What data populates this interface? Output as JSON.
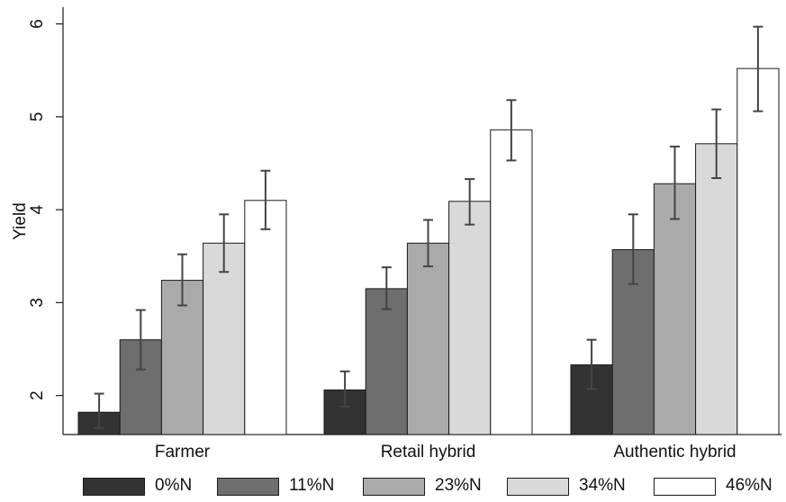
{
  "chart_data": {
    "type": "bar",
    "title": "",
    "xlabel": "",
    "ylabel": "Yield",
    "ylim": [
      1.58,
      6.18
    ],
    "yticks": [
      2,
      3,
      4,
      5,
      6
    ],
    "grid": false,
    "legend_position": "bottom",
    "categories": [
      "Farmer",
      "Retail hybrid",
      "Authentic hybrid"
    ],
    "series": [
      {
        "name": "0%N",
        "color": "#333333",
        "values": [
          1.82,
          2.06,
          2.33
        ],
        "err_low": [
          1.65,
          1.88,
          2.07
        ],
        "err_high": [
          2.02,
          2.26,
          2.6
        ]
      },
      {
        "name": "11%N",
        "color": "#6e6e6e",
        "values": [
          2.6,
          3.15,
          3.57
        ],
        "err_low": [
          2.28,
          2.93,
          3.2
        ],
        "err_high": [
          2.92,
          3.38,
          3.95
        ]
      },
      {
        "name": "23%N",
        "color": "#aaaaaa",
        "values": [
          3.24,
          3.64,
          4.28
        ],
        "err_low": [
          2.97,
          3.39,
          3.9
        ],
        "err_high": [
          3.52,
          3.89,
          4.68
        ]
      },
      {
        "name": "34%N",
        "color": "#d9d9d9",
        "values": [
          3.64,
          4.09,
          4.71
        ],
        "err_low": [
          3.33,
          3.84,
          4.34
        ],
        "err_high": [
          3.95,
          4.33,
          5.08
        ]
      },
      {
        "name": "46%N",
        "color": "#ffffff",
        "values": [
          4.1,
          4.86,
          5.52
        ],
        "err_low": [
          3.79,
          4.53,
          5.06
        ],
        "err_high": [
          4.42,
          5.18,
          5.97
        ]
      }
    ]
  }
}
